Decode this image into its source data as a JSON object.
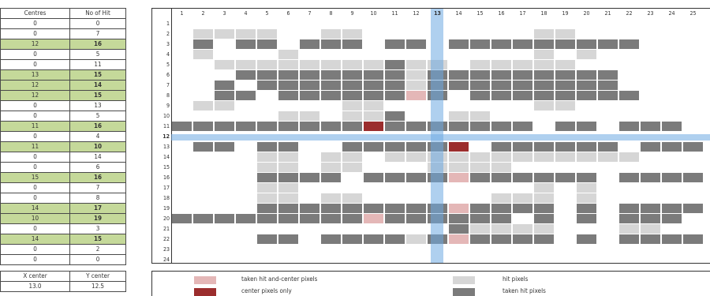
{
  "left_table": {
    "headers": [
      "Centres",
      "No of Hit"
    ],
    "rows": [
      [
        "0",
        "0",
        false
      ],
      [
        "0",
        "7",
        false
      ],
      [
        "12",
        "16",
        true
      ],
      [
        "0",
        "5",
        false
      ],
      [
        "0",
        "11",
        false
      ],
      [
        "13",
        "15",
        true
      ],
      [
        "12",
        "14",
        true
      ],
      [
        "12",
        "15",
        true
      ],
      [
        "0",
        "13",
        false
      ],
      [
        "0",
        "5",
        false
      ],
      [
        "11",
        "16",
        true
      ],
      [
        "0",
        "4",
        false
      ],
      [
        "11",
        "10",
        true
      ],
      [
        "0",
        "14",
        false
      ],
      [
        "0",
        "6",
        false
      ],
      [
        "15",
        "16",
        true
      ],
      [
        "0",
        "7",
        false
      ],
      [
        "0",
        "8",
        false
      ],
      [
        "14",
        "17",
        true
      ],
      [
        "10",
        "19",
        true
      ],
      [
        "0",
        "3",
        false
      ],
      [
        "14",
        "15",
        true
      ],
      [
        "0",
        "2",
        false
      ],
      [
        "0",
        "0",
        false
      ]
    ]
  },
  "grid": {
    "columns": [
      "1",
      "2",
      "3",
      "4",
      "5",
      "6",
      "7",
      "8",
      "9",
      "10",
      "11",
      "12",
      "13",
      "14",
      "15",
      "16",
      "17",
      "18",
      "19",
      "20",
      "21",
      "22",
      "23",
      "24",
      "25"
    ],
    "row_numbers": [
      "1",
      "2",
      "3",
      "4",
      "5",
      "6",
      "7",
      "8",
      "9",
      "10",
      "11",
      "12",
      "13",
      "14",
      "15",
      "16",
      "17",
      "18",
      "19",
      "20",
      "21",
      "22",
      "23",
      "24"
    ],
    "selected_column": "13",
    "selected_row": "12",
    "cells": [
      "0000000000000000000000000",
      "0111100110000000011000000",
      "0202202220220222222222000",
      "0100010000000000010100000",
      "0011111111211011111000000",
      "0002222222212222222220000",
      "0020222222212222222220000",
      "0022022222232022222222000",
      "0110000011000000011000000",
      "0000011011200110000000000",
      "2222222224222222202202220",
      "0000000000000000000000000",
      "0220220022222402222220222",
      "0000110110111111111111000",
      "0000110110001111000000000",
      "0000222202222322222202222",
      "0000110000000000010100000",
      "0000110110000001110100000",
      "0000222222222322220202222",
      "2222222223222222020202220",
      "0000000000000211110001100",
      "0000220222212322220202222",
      "0000000000000000000000000",
      "0000000000000000000000000"
    ],
    "colors": {
      "hit": "#d6d6d6",
      "taken": "#7b7b7b",
      "taken_center": "#e4b7b7",
      "center": "#9b2d2d",
      "band": "#6eaae1"
    }
  },
  "bottom_table": {
    "headers": [
      "X center",
      "Y center"
    ],
    "values": [
      "13.0",
      "12.5"
    ]
  },
  "legend": {
    "taken_non_center": "taken hit and-center pixels",
    "center_only": "center pixels only",
    "hit_pixels": "hit pixels",
    "taken_hit": "taken hit pixels"
  }
}
